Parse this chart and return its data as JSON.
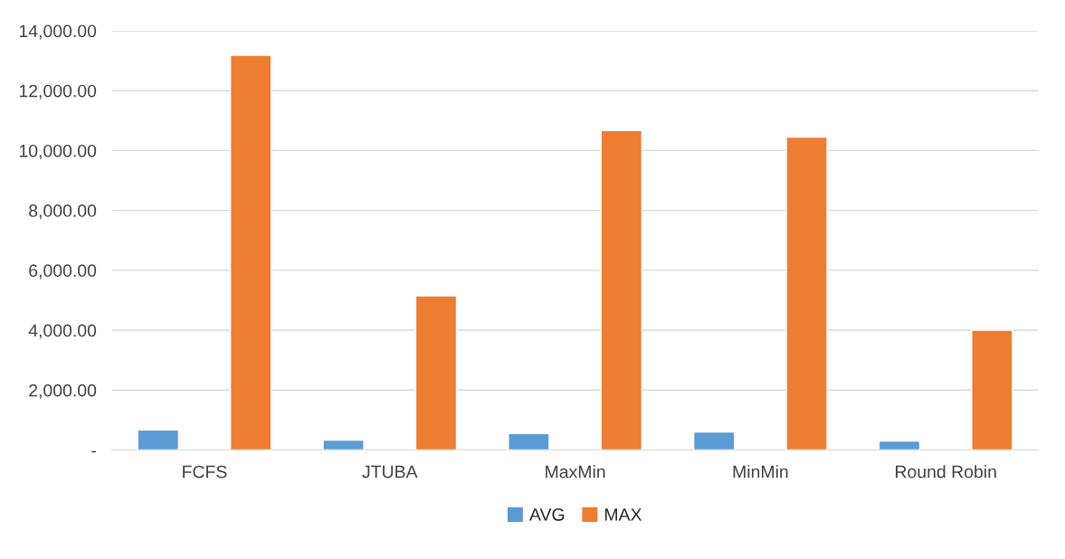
{
  "chart_data": {
    "type": "bar",
    "categories": [
      "FCFS",
      "JTUBA",
      "MaxMin",
      "MinMin",
      "Round Robin"
    ],
    "series": [
      {
        "name": "AVG",
        "color": "#5b9bd5",
        "values": [
          670,
          330,
          550,
          600,
          300
        ]
      },
      {
        "name": "MAX",
        "color": "#ed7d31",
        "values": [
          13180,
          5150,
          10670,
          10450,
          4000
        ]
      }
    ],
    "ylim": [
      0,
      14000
    ],
    "yticks": [
      {
        "value": 0,
        "label": "-"
      },
      {
        "value": 2000,
        "label": "2,000.00"
      },
      {
        "value": 4000,
        "label": "4,000.00"
      },
      {
        "value": 6000,
        "label": "6,000.00"
      },
      {
        "value": 8000,
        "label": "8,000.00"
      },
      {
        "value": 10000,
        "label": "10,000.00"
      },
      {
        "value": 12000,
        "label": "12,000.00"
      },
      {
        "value": 14000,
        "label": "14,000.00"
      }
    ],
    "grid": "y",
    "legend": "bottom"
  }
}
